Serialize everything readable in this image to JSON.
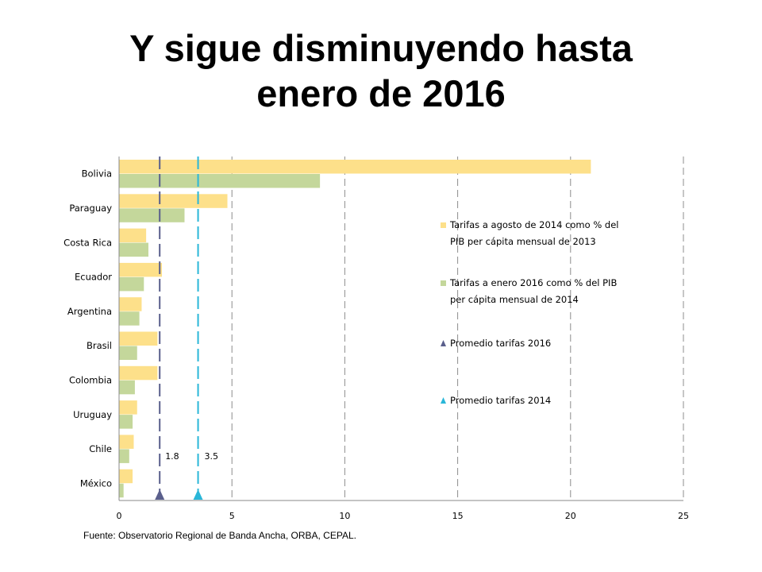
{
  "slide": {
    "title_line1": "Y sigue disminuyendo hasta",
    "title_line2": "enero de 2016",
    "source": "Fuente: Observatorio Regional de Banda Ancha, ORBA, CEPAL."
  },
  "chart_data": {
    "type": "bar",
    "orientation": "horizontal",
    "categories": [
      "Bolivia",
      "Paraguay",
      "Costa Rica",
      "Ecuador",
      "Argentina",
      "Brasil",
      "Colombia",
      "Uruguay",
      "Chile",
      "México"
    ],
    "series": [
      {
        "name": "Tarifas a agosto de 2014 como % del PIB per cápita mensual de 2013",
        "legend_lines": [
          "Tarifas a agosto de 2014 como % del",
          "PIB per cápita mensual de 2013"
        ],
        "color": "#fde08a",
        "values": [
          20.9,
          4.8,
          1.2,
          1.9,
          1.0,
          1.7,
          1.7,
          0.8,
          0.65,
          0.6
        ]
      },
      {
        "name": "Tarifas a enero 2016 como % del PIB per cápita mensual de 2014",
        "legend_lines": [
          "Tarifas a enero 2016 como % del PIB",
          "per cápita mensual de 2014"
        ],
        "color": "#c4d79b",
        "values": [
          8.9,
          2.9,
          1.3,
          1.1,
          0.9,
          0.8,
          0.7,
          0.6,
          0.45,
          0.2
        ]
      }
    ],
    "reference_lines": [
      {
        "name": "Promedio tarifas 2016",
        "value": 1.8,
        "label": "1.8",
        "color": "#5a5f8c"
      },
      {
        "name": "Promedio tarifas 2014",
        "value": 3.5,
        "label": "3.5",
        "color": "#29b6d8"
      }
    ],
    "x_ticks": [
      "0",
      "5",
      "10",
      "15",
      "20",
      "25"
    ],
    "xlim": [
      0,
      25
    ],
    "grid": "vertical dashed",
    "legend_position": "right"
  }
}
